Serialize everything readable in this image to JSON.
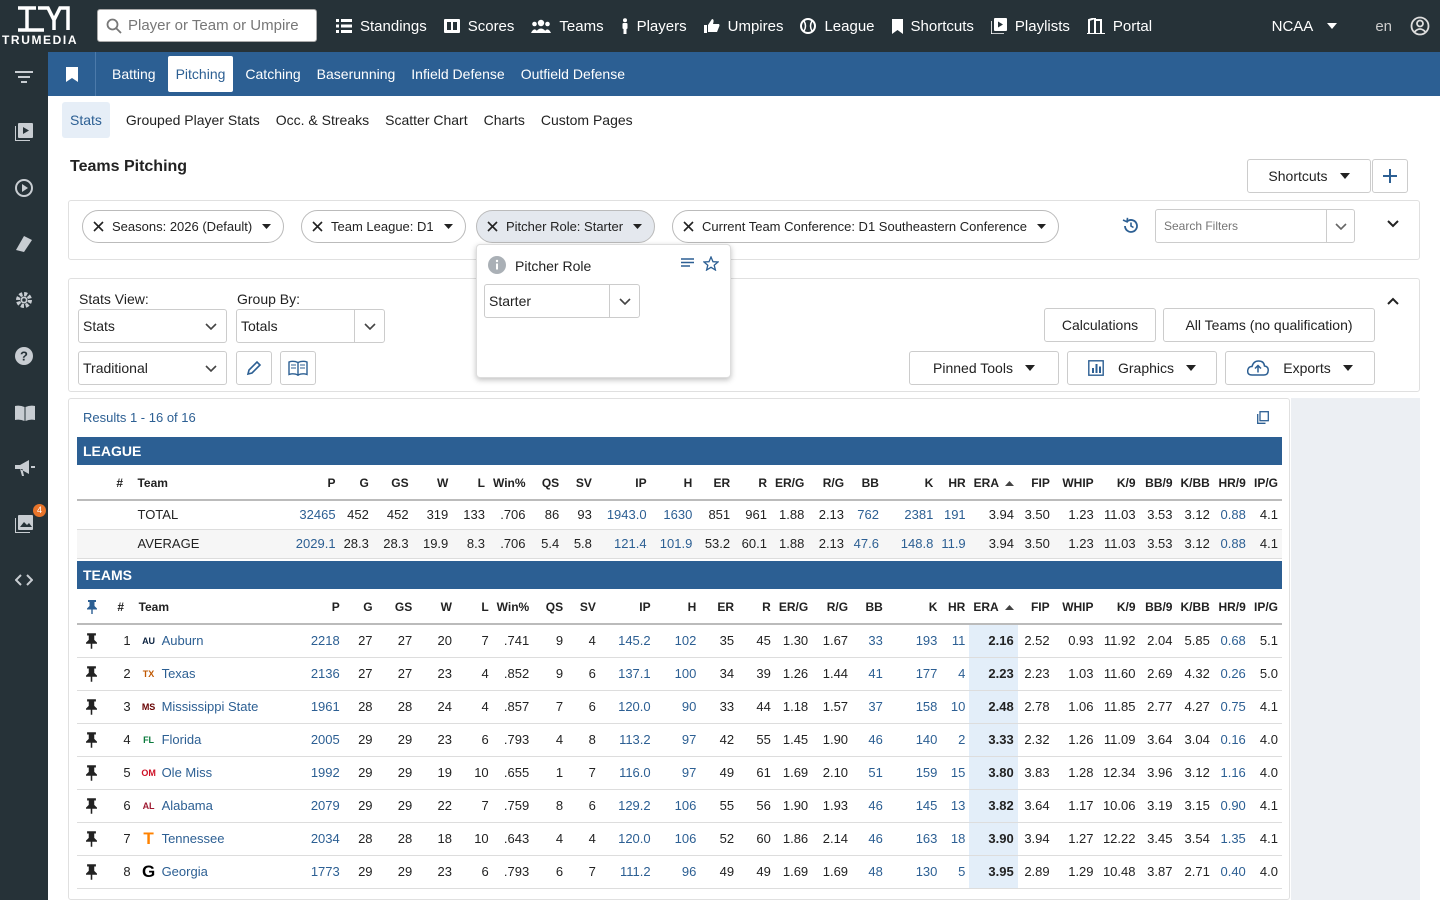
{
  "brand": {
    "wordmark": "TRUMEDIA"
  },
  "search": {
    "placeholder": "Player or Team or Umpire"
  },
  "nav": [
    {
      "label": "Standings",
      "icon": "list-icon"
    },
    {
      "label": "Scores",
      "icon": "scoreboard-icon"
    },
    {
      "label": "Teams",
      "icon": "users-icon"
    },
    {
      "label": "Players",
      "icon": "person-icon"
    },
    {
      "label": "Umpires",
      "icon": "thumbs-icon"
    },
    {
      "label": "League",
      "icon": "baseball-icon"
    },
    {
      "label": "Shortcuts",
      "icon": "bookmark-icon"
    },
    {
      "label": "Playlists",
      "icon": "playlist-icon"
    },
    {
      "label": "Portal",
      "icon": "portal-icon"
    }
  ],
  "org": {
    "selected": "NCAA"
  },
  "language": "en",
  "sidebar": {
    "badge_count": "4"
  },
  "tabs": [
    "Batting",
    "Pitching",
    "Catching",
    "Baserunning",
    "Infield Defense",
    "Outfield Defense"
  ],
  "active_tab": "Pitching",
  "subtabs": [
    "Stats",
    "Grouped Player Stats",
    "Occ. & Streaks",
    "Scatter Chart",
    "Charts",
    "Custom Pages"
  ],
  "page": {
    "title": "Teams Pitching",
    "shortcuts_label": "Shortcuts"
  },
  "filters": {
    "chips": [
      "Seasons: 2026 (Default)",
      "Team League: D1",
      "Pitcher Role: Starter",
      "Current Team Conference: D1 Southeastern Conference"
    ],
    "search_placeholder": "Search Filters"
  },
  "popup": {
    "title": "Pitcher Role",
    "value": "Starter"
  },
  "options": {
    "stats_view_label": "Stats View:",
    "stats_view_value": "Stats",
    "group_by_label": "Group By:",
    "group_by_value": "Totals",
    "preset_value": "Traditional",
    "calculations": "Calculations",
    "qualification": "All Teams (no qualification)",
    "pinned_tools": "Pinned Tools",
    "graphics": "Graphics",
    "exports": "Exports"
  },
  "results": {
    "label": "Results 1 - 16 of 16"
  },
  "league": {
    "band": "LEAGUE",
    "rows": [
      {
        "label": "TOTAL",
        "P": "32465",
        "G": "452",
        "GS": "452",
        "W": "319",
        "L": "133",
        "WinPct": ".706",
        "QS": "86",
        "SV": "93",
        "IP": "1943.0",
        "H": "1630",
        "ER": "851",
        "R": "961",
        "ERG": "1.88",
        "RG": "2.13",
        "BB": "762",
        "K": "2381",
        "HR": "191",
        "ERA": "3.94",
        "FIP": "3.50",
        "WHIP": "1.23",
        "K9": "11.03",
        "BB9": "3.53",
        "KBB": "3.12",
        "HR9": "0.88",
        "IPG": "4.1"
      },
      {
        "label": "AVERAGE",
        "P": "2029.1",
        "G": "28.3",
        "GS": "28.3",
        "W": "19.9",
        "L": "8.3",
        "WinPct": ".706",
        "QS": "5.4",
        "SV": "5.8",
        "IP": "121.4",
        "H": "101.9",
        "ER": "53.2",
        "R": "60.1",
        "ERG": "1.88",
        "RG": "2.13",
        "BB": "47.6",
        "K": "148.8",
        "HR": "11.9",
        "ERA": "3.94",
        "FIP": "3.50",
        "WHIP": "1.23",
        "K9": "11.03",
        "BB9": "3.53",
        "KBB": "3.12",
        "HR9": "0.88",
        "IPG": "4.1"
      }
    ]
  },
  "columns": {
    "num": "#",
    "team": "Team",
    "P": "P",
    "G": "G",
    "GS": "GS",
    "W": "W",
    "L": "L",
    "WinPct": "Win%",
    "QS": "QS",
    "SV": "SV",
    "IP": "IP",
    "H": "H",
    "ER": "ER",
    "R": "R",
    "ERG": "ER/G",
    "RG": "R/G",
    "BB": "BB",
    "K": "K",
    "HR": "HR",
    "ERA": "ERA",
    "FIP": "FIP",
    "WHIP": "WHIP",
    "K9": "K/9",
    "BB9": "BB/9",
    "KBB": "K/BB",
    "HR9": "HR/9",
    "IPG": "IP/G"
  },
  "teams": {
    "band": "TEAMS",
    "rows": [
      {
        "rank": "1",
        "team": "Auburn",
        "logo": "AU",
        "color": "#0c2340",
        "P": "2218",
        "G": "27",
        "GS": "27",
        "W": "20",
        "L": "7",
        "WinPct": ".741",
        "QS": "9",
        "SV": "4",
        "IP": "145.2",
        "H": "102",
        "ER": "35",
        "R": "45",
        "ERG": "1.30",
        "RG": "1.67",
        "BB": "33",
        "K": "193",
        "HR": "11",
        "ERA": "2.16",
        "FIP": "2.52",
        "WHIP": "0.93",
        "K9": "11.92",
        "BB9": "2.04",
        "KBB": "5.85",
        "HR9": "0.68",
        "IPG": "5.1"
      },
      {
        "rank": "2",
        "team": "Texas",
        "logo": "TX",
        "color": "#bf5700",
        "P": "2136",
        "G": "27",
        "GS": "27",
        "W": "23",
        "L": "4",
        "WinPct": ".852",
        "QS": "9",
        "SV": "6",
        "IP": "137.1",
        "H": "100",
        "ER": "34",
        "R": "39",
        "ERG": "1.26",
        "RG": "1.44",
        "BB": "41",
        "K": "177",
        "HR": "4",
        "ERA": "2.23",
        "FIP": "2.23",
        "WHIP": "1.03",
        "K9": "11.60",
        "BB9": "2.69",
        "KBB": "4.32",
        "HR9": "0.26",
        "IPG": "5.0"
      },
      {
        "rank": "3",
        "team": "Mississippi State",
        "logo": "MS",
        "color": "#660000",
        "P": "1961",
        "G": "28",
        "GS": "28",
        "W": "24",
        "L": "4",
        "WinPct": ".857",
        "QS": "7",
        "SV": "6",
        "IP": "120.0",
        "H": "90",
        "ER": "33",
        "R": "44",
        "ERG": "1.18",
        "RG": "1.57",
        "BB": "37",
        "K": "158",
        "HR": "10",
        "ERA": "2.48",
        "FIP": "2.78",
        "WHIP": "1.06",
        "K9": "11.85",
        "BB9": "2.77",
        "KBB": "4.27",
        "HR9": "0.75",
        "IPG": "4.1"
      },
      {
        "rank": "4",
        "team": "Florida",
        "logo": "FL",
        "color": "#0a7a3c",
        "P": "2005",
        "G": "29",
        "GS": "29",
        "W": "23",
        "L": "6",
        "WinPct": ".793",
        "QS": "4",
        "SV": "8",
        "IP": "113.2",
        "H": "97",
        "ER": "42",
        "R": "55",
        "ERG": "1.45",
        "RG": "1.90",
        "BB": "46",
        "K": "140",
        "HR": "2",
        "ERA": "3.33",
        "FIP": "2.32",
        "WHIP": "1.26",
        "K9": "11.09",
        "BB9": "3.64",
        "KBB": "3.04",
        "HR9": "0.16",
        "IPG": "4.0"
      },
      {
        "rank": "5",
        "team": "Ole Miss",
        "logo": "OM",
        "color": "#ce1126",
        "P": "1992",
        "G": "29",
        "GS": "29",
        "W": "19",
        "L": "10",
        "WinPct": ".655",
        "QS": "1",
        "SV": "7",
        "IP": "116.0",
        "H": "97",
        "ER": "49",
        "R": "61",
        "ERG": "1.69",
        "RG": "2.10",
        "BB": "51",
        "K": "159",
        "HR": "15",
        "ERA": "3.80",
        "FIP": "3.83",
        "WHIP": "1.28",
        "K9": "12.34",
        "BB9": "3.96",
        "KBB": "3.12",
        "HR9": "1.16",
        "IPG": "4.0"
      },
      {
        "rank": "6",
        "team": "Alabama",
        "logo": "AL",
        "color": "#9e1b32",
        "P": "2079",
        "G": "29",
        "GS": "29",
        "W": "22",
        "L": "7",
        "WinPct": ".759",
        "QS": "8",
        "SV": "6",
        "IP": "129.2",
        "H": "106",
        "ER": "55",
        "R": "56",
        "ERG": "1.90",
        "RG": "1.93",
        "BB": "46",
        "K": "145",
        "HR": "13",
        "ERA": "3.82",
        "FIP": "3.64",
        "WHIP": "1.17",
        "K9": "10.06",
        "BB9": "3.19",
        "KBB": "3.15",
        "HR9": "0.90",
        "IPG": "4.1"
      },
      {
        "rank": "7",
        "team": "Tennessee",
        "logo": "T",
        "color": "#ff8200",
        "P": "2034",
        "G": "28",
        "GS": "28",
        "W": "18",
        "L": "10",
        "WinPct": ".643",
        "QS": "4",
        "SV": "4",
        "IP": "120.0",
        "H": "106",
        "ER": "52",
        "R": "60",
        "ERG": "1.86",
        "RG": "2.14",
        "BB": "46",
        "K": "163",
        "HR": "18",
        "ERA": "3.90",
        "FIP": "3.94",
        "WHIP": "1.27",
        "K9": "12.22",
        "BB9": "3.45",
        "KBB": "3.54",
        "HR9": "1.35",
        "IPG": "4.1"
      },
      {
        "rank": "8",
        "team": "Georgia",
        "logo": "G",
        "color": "#000000",
        "P": "1773",
        "G": "29",
        "GS": "29",
        "W": "23",
        "L": "6",
        "WinPct": ".793",
        "QS": "6",
        "SV": "7",
        "IP": "111.2",
        "H": "96",
        "ER": "49",
        "R": "49",
        "ERG": "1.69",
        "RG": "1.69",
        "BB": "48",
        "K": "130",
        "HR": "5",
        "ERA": "3.95",
        "FIP": "2.89",
        "WHIP": "1.29",
        "K9": "10.48",
        "BB9": "3.87",
        "KBB": "2.71",
        "HR9": "0.40",
        "IPG": "4.0"
      }
    ]
  },
  "colors": {
    "topbar": "#263238",
    "accent": "#2c5f93",
    "era_highlight": "#e3eef9"
  }
}
